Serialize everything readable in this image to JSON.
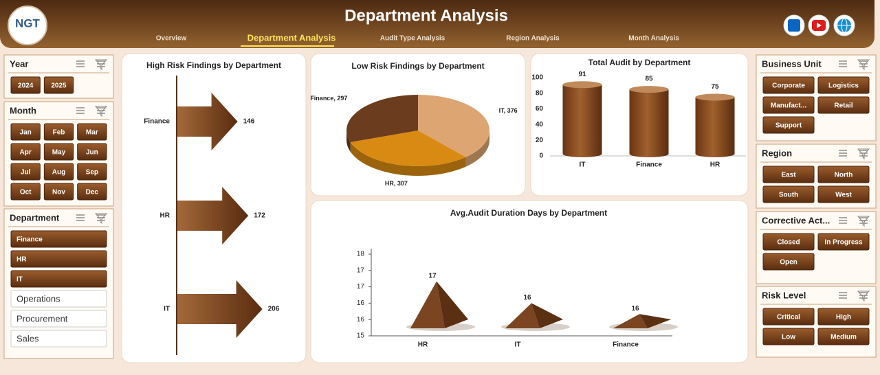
{
  "header": {
    "logo": "NGT",
    "title": "Department Analysis"
  },
  "nav": [
    "Overview",
    "Department Analysis",
    "Audit Type Analysis",
    "Region Analysis",
    "Month Analysis"
  ],
  "nav_active": 1,
  "slicers_left": [
    {
      "title": "Year",
      "items": [
        "2024",
        "2025"
      ]
    },
    {
      "title": "Month",
      "items": [
        "Jan",
        "Feb",
        "Mar",
        "Apr",
        "May",
        "Jun",
        "Jul",
        "Aug",
        "Sep",
        "Oct",
        "Nov",
        "Dec"
      ]
    },
    {
      "title": "Department",
      "items": [
        "Finance",
        "HR",
        "IT",
        "Operations",
        "Procurement",
        "Sales"
      ],
      "selected": [
        true,
        true,
        true,
        false,
        false,
        false
      ]
    }
  ],
  "slicers_right": [
    {
      "title": "Business Unit",
      "items": [
        "Corporate",
        "Logistics",
        "Manufact...",
        "Retail",
        "Support"
      ]
    },
    {
      "title": "Region",
      "items": [
        "East",
        "North",
        "South",
        "West"
      ]
    },
    {
      "title": "Corrective Act...",
      "items": [
        "Closed",
        "In Progress",
        "Open"
      ]
    },
    {
      "title": "Risk Level",
      "items": [
        "Critical",
        "High",
        "Low",
        "Medium"
      ]
    }
  ],
  "chart_data": [
    {
      "type": "bar",
      "title": "High Risk Findings by Department",
      "categories": [
        "Finance",
        "HR",
        "IT"
      ],
      "values": [
        146,
        172,
        206
      ],
      "color": "#6b3a1a"
    },
    {
      "type": "pie",
      "title": "Low Risk Findings by Department",
      "categories": [
        "IT",
        "HR",
        "Finance"
      ],
      "values": [
        376,
        307,
        297
      ],
      "value_labels": [
        "IT, 376",
        "HR, 307",
        "Finance, 297"
      ],
      "colors": [
        "#dca571",
        "#d98a12",
        "#6b3d1e"
      ]
    },
    {
      "type": "column",
      "title": "Total Audit by Department",
      "categories": [
        "IT",
        "Finance",
        "HR"
      ],
      "values": [
        91,
        85,
        75
      ],
      "color": "#8a4f22",
      "ylim": [
        0,
        100
      ],
      "yticks": [
        0,
        20,
        40,
        60,
        80,
        100
      ]
    },
    {
      "type": "pyramid",
      "title": "Avg.Audit Duration Days by Department",
      "categories": [
        "HR",
        "IT",
        "Finance"
      ],
      "values": [
        17.0,
        16.2,
        15.8
      ],
      "value_labels": [
        "17",
        "16",
        "16"
      ],
      "color": "#7a4520",
      "ylim": [
        15,
        18
      ],
      "yticks": [
        {
          "value": 15,
          "label": "15"
        },
        {
          "value": 15.6,
          "label": "16"
        },
        {
          "value": 16.2,
          "label": "16"
        },
        {
          "value": 16.8,
          "label": "17"
        },
        {
          "value": 17.4,
          "label": "17"
        },
        {
          "value": 18,
          "label": "18"
        }
      ]
    }
  ]
}
